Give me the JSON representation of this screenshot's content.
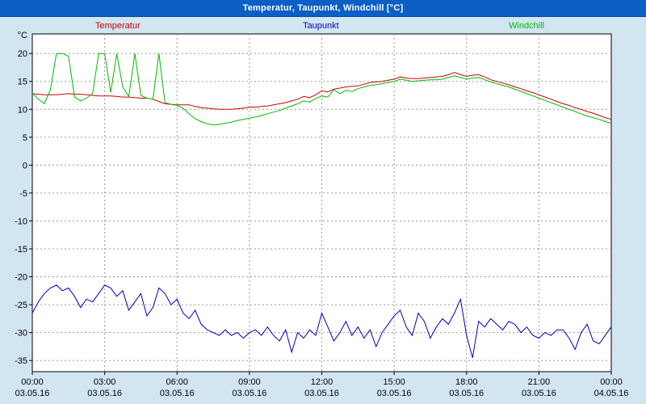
{
  "window": {
    "title": "Temperatur, Taupunkt, Windchill [°C]"
  },
  "colors": {
    "background": "#d2e6f2",
    "titlebar": "#0b5fc5",
    "titlebar_text": "#ffffff",
    "plot_bg": "#ffffff",
    "plot_border": "#000000",
    "grid": "#989898",
    "tick": "#000000"
  },
  "chart_data": {
    "type": "line",
    "title": "Temperatur, Taupunkt, Windchill [°C]",
    "xlabel": "",
    "ylabel": "°C",
    "ylim": [
      -37,
      23.5
    ],
    "yticks": [
      20,
      15,
      10,
      5,
      0,
      -5,
      -10,
      -15,
      -20,
      -25,
      -30,
      -35
    ],
    "grid": true,
    "legend_position": "top",
    "x_hours_range": [
      0,
      24
    ],
    "x_step_hours": 0.25,
    "xticks": [
      {
        "hour": 0,
        "time": "00:00",
        "date": "03.05.16"
      },
      {
        "hour": 3,
        "time": "03:00",
        "date": "03.05.16"
      },
      {
        "hour": 6,
        "time": "06:00",
        "date": "03.05.16"
      },
      {
        "hour": 9,
        "time": "09:00",
        "date": "03.05.16"
      },
      {
        "hour": 12,
        "time": "12:00",
        "date": "03.05.16"
      },
      {
        "hour": 15,
        "time": "15:00",
        "date": "03.05.16"
      },
      {
        "hour": 18,
        "time": "18:00",
        "date": "03.05.16"
      },
      {
        "hour": 21,
        "time": "21:00",
        "date": "03.05.16"
      },
      {
        "hour": 24,
        "time": "00:00",
        "date": "04.05.16"
      }
    ],
    "series": [
      {
        "name": "Temperatur",
        "color": "#cc0000",
        "values": [
          12.8,
          12.7,
          12.6,
          12.6,
          12.6,
          12.7,
          12.8,
          12.7,
          12.7,
          12.6,
          12.5,
          12.4,
          12.4,
          12.4,
          12.3,
          12.2,
          12.2,
          12.1,
          12.0,
          12.0,
          11.8,
          11.4,
          11.0,
          10.9,
          10.8,
          10.8,
          10.8,
          10.5,
          10.3,
          10.2,
          10.1,
          10.0,
          10.0,
          10.0,
          10.1,
          10.2,
          10.4,
          10.4,
          10.5,
          10.6,
          10.8,
          11.0,
          11.2,
          11.5,
          11.8,
          12.3,
          12.1,
          12.6,
          13.3,
          13.1,
          13.6,
          13.8,
          14.0,
          14.1,
          14.2,
          14.5,
          14.8,
          14.9,
          15.0,
          15.2,
          15.4,
          15.8,
          15.6,
          15.5,
          15.5,
          15.6,
          15.7,
          15.8,
          15.9,
          16.2,
          16.6,
          16.2,
          15.9,
          16.1,
          16.2,
          15.8,
          15.3,
          15.0,
          14.7,
          14.4,
          14.0,
          13.7,
          13.3,
          13.0,
          12.6,
          12.2,
          11.8,
          11.4,
          11.0,
          10.7,
          10.3,
          10.0,
          9.6,
          9.3,
          8.9,
          8.5,
          8.2
        ]
      },
      {
        "name": "Taupunkt",
        "color": "#0000bb",
        "values": [
          -26.5,
          -24.5,
          -23.0,
          -22.0,
          -21.5,
          -22.5,
          -22.0,
          -23.5,
          -25.5,
          -24.0,
          -24.5,
          -23.0,
          -21.5,
          -22.0,
          -23.5,
          -22.5,
          -26.0,
          -24.5,
          -23.0,
          -27.0,
          -25.5,
          -22.0,
          -23.0,
          -25.0,
          -24.0,
          -26.5,
          -27.5,
          -26.0,
          -28.5,
          -29.5,
          -30.0,
          -30.5,
          -29.5,
          -30.5,
          -30.0,
          -31.0,
          -30.0,
          -29.5,
          -30.5,
          -29.0,
          -30.5,
          -31.5,
          -29.5,
          -33.5,
          -30.0,
          -31.0,
          -29.5,
          -30.5,
          -26.5,
          -29.0,
          -31.5,
          -30.0,
          -28.0,
          -30.5,
          -29.0,
          -31.0,
          -29.5,
          -32.5,
          -30.0,
          -28.5,
          -27.0,
          -26.0,
          -29.0,
          -30.5,
          -26.5,
          -28.0,
          -31.0,
          -29.0,
          -27.5,
          -28.5,
          -26.5,
          -24.0,
          -30.5,
          -34.5,
          -28.0,
          -29.0,
          -27.5,
          -28.5,
          -29.5,
          -28.0,
          -28.5,
          -30.0,
          -29.0,
          -30.5,
          -31.0,
          -30.0,
          -30.5,
          -29.5,
          -29.5,
          -31.0,
          -33.0,
          -30.0,
          -28.5,
          -31.5,
          -32.0,
          -30.5,
          -29.0
        ]
      },
      {
        "name": "Windchill",
        "color": "#00bb00",
        "values": [
          12.9,
          11.8,
          11.0,
          13.5,
          20,
          20,
          19.5,
          12.2,
          11.5,
          12.0,
          12.8,
          20,
          20,
          13.0,
          20,
          14.0,
          12.3,
          20,
          12.5,
          12.0,
          11.8,
          20,
          11.2,
          10.9,
          10.7,
          10.2,
          9.2,
          8.3,
          7.8,
          7.4,
          7.2,
          7.3,
          7.5,
          7.7,
          8.0,
          8.2,
          8.4,
          8.6,
          8.9,
          9.2,
          9.5,
          9.8,
          10.2,
          10.6,
          11.0,
          11.5,
          11.3,
          11.9,
          12.4,
          12.2,
          13.5,
          12.8,
          13.4,
          13.2,
          13.7,
          14.0,
          14.3,
          14.4,
          14.6,
          14.8,
          15.0,
          15.4,
          15.2,
          15.0,
          15.1,
          15.2,
          15.3,
          15.3,
          15.4,
          15.7,
          16.0,
          15.7,
          15.4,
          15.6,
          15.7,
          15.3,
          14.9,
          14.6,
          14.3,
          14.0,
          13.6,
          13.2,
          12.8,
          12.4,
          12.0,
          11.6,
          11.2,
          10.8,
          10.4,
          10.0,
          9.6,
          9.2,
          8.8,
          8.5,
          8.2,
          7.8,
          7.5
        ]
      }
    ]
  }
}
